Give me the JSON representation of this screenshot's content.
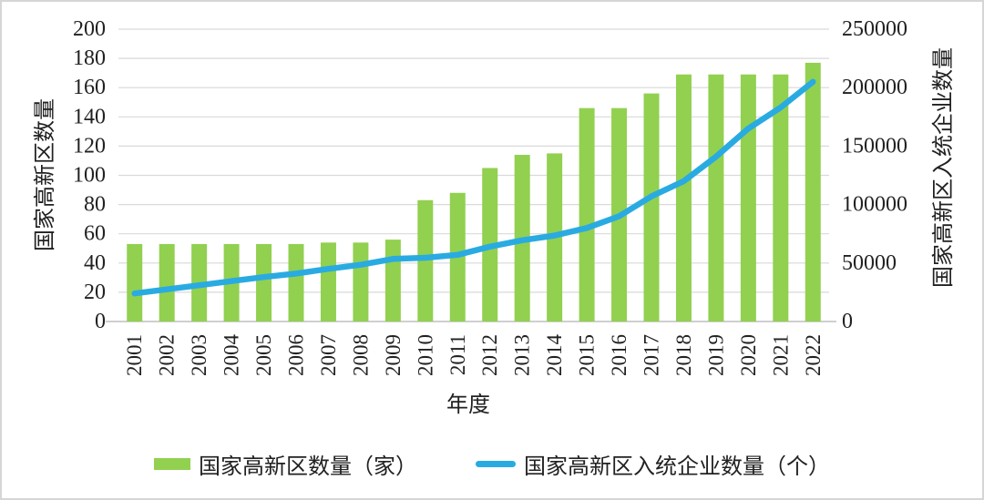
{
  "figure": {
    "background": "#ffffff",
    "border_color": "#d6d6d6"
  },
  "chart_data": {
    "type": "bar+line",
    "categories": [
      "2001",
      "2002",
      "2003",
      "2004",
      "2005",
      "2006",
      "2007",
      "2008",
      "2009",
      "2010",
      "2011",
      "2012",
      "2013",
      "2014",
      "2015",
      "2016",
      "2017",
      "2018",
      "2019",
      "2020",
      "2021",
      "2022"
    ],
    "series": [
      {
        "name": "国家高新区数量（家）",
        "type": "bar",
        "axis": "left",
        "color": "#92D050",
        "values": [
          53,
          53,
          53,
          53,
          53,
          53,
          54,
          54,
          56,
          83,
          88,
          105,
          114,
          115,
          146,
          146,
          156,
          169,
          169,
          169,
          169,
          177
        ]
      },
      {
        "name": "国家高新区入统企业数量（个）",
        "type": "line",
        "axis": "right",
        "color": "#29ABE2",
        "values": [
          24000,
          27500,
          31000,
          34500,
          38000,
          41000,
          45000,
          48500,
          53500,
          54500,
          57000,
          64000,
          69500,
          73500,
          80000,
          90000,
          107000,
          120000,
          141000,
          165000,
          183000,
          205000
        ]
      }
    ],
    "title": "",
    "xlabel": "年度",
    "left_axis": {
      "title": "国家高新区数量",
      "min": 0,
      "max": 200,
      "step": 20
    },
    "right_axis": {
      "title": "国家高新区入统企业数量",
      "min": 0,
      "max": 250000,
      "step": 50000
    },
    "grid": true,
    "legend_position": "bottom",
    "gridline_color": "#d9d9d9",
    "axis_line_color": "#bfbfbf",
    "text_color": "#212121"
  }
}
